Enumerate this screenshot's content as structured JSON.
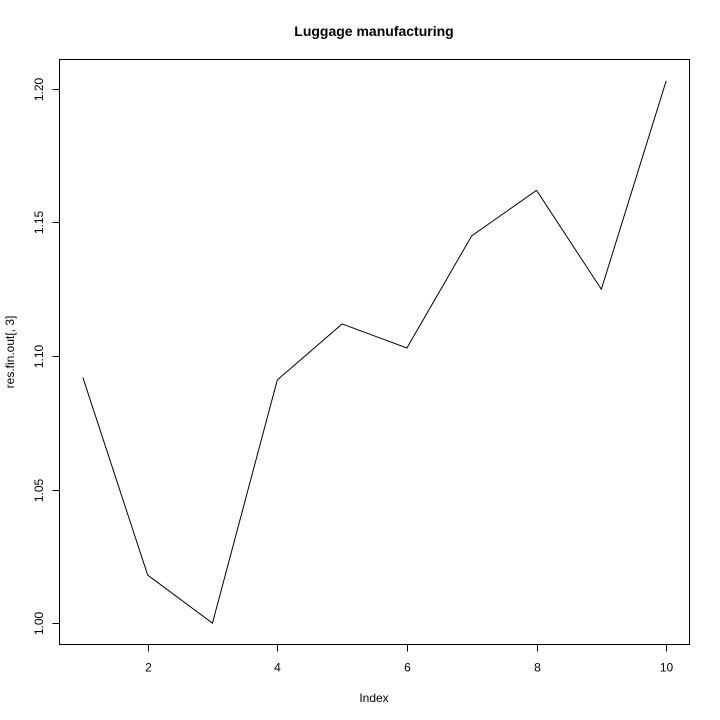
{
  "chart_data": {
    "type": "line",
    "title": "Luggage manufacturing",
    "xlabel": "Index",
    "ylabel": "res.fin.out[, 3]",
    "x": [
      1,
      2,
      3,
      4,
      5,
      6,
      7,
      8,
      9,
      10
    ],
    "series": [
      {
        "values": [
          1.092,
          1.018,
          1.0,
          1.091,
          1.112,
          1.103,
          1.145,
          1.162,
          1.125,
          1.203
        ]
      }
    ],
    "xlim": [
      0.64,
      10.36
    ],
    "ylim": [
      0.992,
      1.211
    ],
    "xticks": [
      2,
      4,
      6,
      8,
      10
    ],
    "yticks": [
      1.0,
      1.05,
      1.1,
      1.15,
      1.2
    ],
    "ytick_labels": [
      "1.00",
      "1.05",
      "1.10",
      "1.15",
      "1.20"
    ],
    "grid": false,
    "colors": {
      "line": "#000000",
      "background": "#ffffff"
    }
  }
}
